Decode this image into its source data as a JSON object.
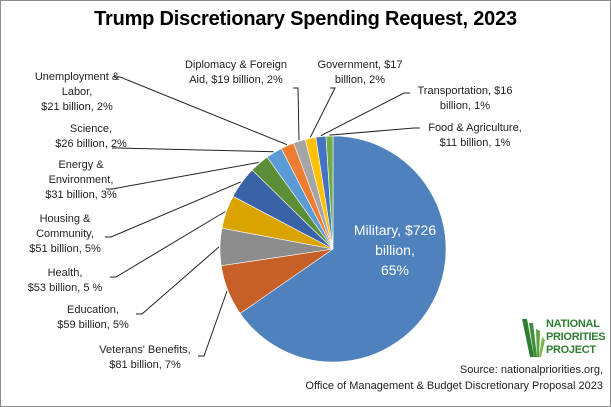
{
  "chart_data": {
    "type": "pie",
    "title": "Trump Discretionary Spending Request, 2023",
    "units": "billion USD",
    "start": "top, clockwise",
    "slices": [
      {
        "name": "Military",
        "value": 726,
        "percent": 65,
        "color": "#4F81BD",
        "label": "Military, $726 billion, 65%"
      },
      {
        "name": "Veterans' Benefits",
        "value": 81,
        "percent": 7,
        "color": "#C65F28",
        "label": "Veterans' Benefits, $81 billion, 7%"
      },
      {
        "name": "Education",
        "value": 59,
        "percent": 5,
        "color": "#8C8C8C",
        "label": "Education, $59 billion, 5%"
      },
      {
        "name": "Health",
        "value": 53,
        "percent": 5,
        "color": "#D9A300",
        "label": "Health, $53 billion, 5 %"
      },
      {
        "name": "Housing & Community",
        "value": 51,
        "percent": 5,
        "color": "#3A62A7",
        "label": "Housing & Community, $51 billion, 5%"
      },
      {
        "name": "Energy & Environment",
        "value": 31,
        "percent": 3,
        "color": "#5B8E37",
        "label": "Energy & Environment, $31 billion, 3%"
      },
      {
        "name": "Science",
        "value": 26,
        "percent": 2,
        "color": "#5B9BD5",
        "label": "Science, $26 billion, 2%"
      },
      {
        "name": "Unemployment & Labor",
        "value": 21,
        "percent": 2,
        "color": "#ED7D31",
        "label": "Unemployment & Labor, $21 billion, 2%"
      },
      {
        "name": "Diplomacy & Foreign Aid",
        "value": 19,
        "percent": 2,
        "color": "#A5A5A5",
        "label": "Diplomacy & Foreign Aid, $19 billion, 2%"
      },
      {
        "name": "Government",
        "value": 17,
        "percent": 2,
        "color": "#FFC000",
        "label": "Government, $17 billion, 2%"
      },
      {
        "name": "Transportation",
        "value": 16,
        "percent": 1,
        "color": "#4472C4",
        "label": "Transportation, $16 billion, 1%"
      },
      {
        "name": "Food & Agriculture",
        "value": 11,
        "percent": 1,
        "color": "#70AD47",
        "label": "Food & Agriculture, $11 billion, 1%"
      }
    ],
    "legend": "none (data labels with leader lines)"
  },
  "labels": {
    "military": [
      "Military, $726",
      "billion,",
      "65%"
    ],
    "veterans": [
      "Veterans' Benefits,",
      "$81 billion, 7%"
    ],
    "education": [
      "Education,",
      "$59 billion, 5%"
    ],
    "health": [
      "Health,",
      "$53 billion, 5 %"
    ],
    "housing": [
      "Housing  &",
      "Community,",
      "$51 billion, 5%"
    ],
    "energy": [
      "Energy &",
      "Environment,",
      "$31 billion, 3%"
    ],
    "science": [
      "Science,",
      "$26 billion, 2%"
    ],
    "unemployment": [
      "Unemployment  &",
      "Labor,",
      "$21 billion, 2%"
    ],
    "diplomacy": [
      "Diplomacy & Foreign",
      "Aid, $19 billion, 2%"
    ],
    "government": [
      "Government,  $17",
      "billion, 2%"
    ],
    "transportation": [
      "Transportation, $16",
      "billion, 1%"
    ],
    "food": [
      "Food & Agriculture,",
      "$11 billion, 1%"
    ]
  },
  "source": {
    "line1": "Source: nationalpriorities.org,",
    "line2": "Office of Management & Budget Discretionary Proposal 2023"
  },
  "logo": {
    "lines": [
      "NATIONAL",
      "PRIORITIES",
      "PROJECT"
    ],
    "color": "#2F7D32"
  }
}
